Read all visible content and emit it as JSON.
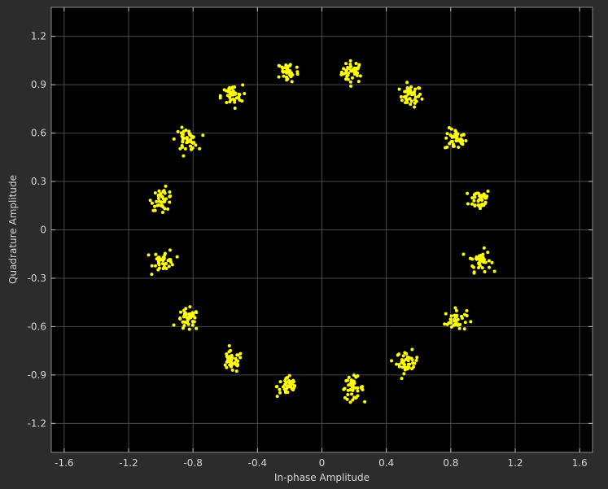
{
  "chart_data": {
    "type": "scatter",
    "title": "",
    "xlabel": "In-phase Amplitude",
    "ylabel": "Quadrature Amplitude",
    "xlim": [
      -1.68,
      1.68
    ],
    "ylim": [
      -1.38,
      1.38
    ],
    "xticks": [
      -1.6,
      -1.2,
      -0.8,
      -0.4,
      0,
      0.4,
      0.8,
      1.2,
      1.6
    ],
    "xtick_labels": [
      "-1.6",
      "-1.2",
      "-0.8",
      "-0.4",
      "0",
      "0.4",
      "0.8",
      "1.2",
      "1.6"
    ],
    "yticks": [
      1.2,
      0.9,
      0.6,
      0.3,
      0,
      -0.3,
      -0.6,
      -0.9,
      -1.2
    ],
    "ytick_labels": [
      "1.2",
      "0.9",
      "0.6",
      "0.3",
      "0",
      "-0.3",
      "-0.6",
      "-0.9",
      "-1.2"
    ],
    "grid": true,
    "background_color": "#000000",
    "grid_color": "#4a4a4a",
    "marker_color": "#ffff00",
    "clusters": [
      {
        "x": 0.19,
        "y": 0.98
      },
      {
        "x": 0.55,
        "y": 0.83
      },
      {
        "x": 0.83,
        "y": 0.56
      },
      {
        "x": 0.98,
        "y": 0.19
      },
      {
        "x": 0.98,
        "y": -0.19
      },
      {
        "x": 0.83,
        "y": -0.56
      },
      {
        "x": 0.53,
        "y": -0.82
      },
      {
        "x": 0.19,
        "y": -0.98
      },
      {
        "x": -0.21,
        "y": -0.97
      },
      {
        "x": -0.56,
        "y": -0.82
      },
      {
        "x": -0.83,
        "y": -0.56
      },
      {
        "x": -0.98,
        "y": -0.19
      },
      {
        "x": -0.99,
        "y": 0.19
      },
      {
        "x": -0.84,
        "y": 0.56
      },
      {
        "x": -0.56,
        "y": 0.83
      },
      {
        "x": -0.21,
        "y": 0.98
      }
    ],
    "points_per_cluster": 40,
    "cluster_spread": 0.045
  }
}
